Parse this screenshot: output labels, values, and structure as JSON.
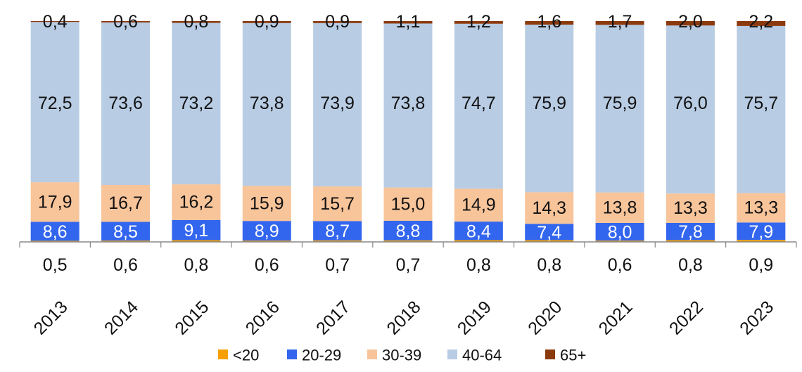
{
  "chart_data": {
    "type": "bar",
    "stacked": true,
    "normalized": true,
    "categories": [
      "2013",
      "2014",
      "2015",
      "2016",
      "2017",
      "2018",
      "2019",
      "2020",
      "2021",
      "2022",
      "2023"
    ],
    "series": [
      {
        "name": "<20",
        "color": "#f5a000",
        "values": [
          "0,5",
          "0,6",
          "0,8",
          "0,6",
          "0,7",
          "0,7",
          "0,8",
          "0,8",
          "0,6",
          "0,8",
          "0,9"
        ]
      },
      {
        "name": "20-29",
        "color": "#3366ee",
        "values": [
          "8,6",
          "8,5",
          "9,1",
          "8,9",
          "8,7",
          "8,8",
          "8,4",
          "7,4",
          "8,0",
          "7,8",
          "7,9"
        ]
      },
      {
        "name": "30-39",
        "color": "#f8c49a",
        "values": [
          "17,9",
          "16,7",
          "16,2",
          "15,9",
          "15,7",
          "15,0",
          "14,9",
          "14,3",
          "13,8",
          "13,3",
          "13,3"
        ]
      },
      {
        "name": "40-64",
        "color": "#b8cce4",
        "values": [
          "72,5",
          "73,6",
          "73,2",
          "73,8",
          "73,9",
          "73,8",
          "74,7",
          "75,9",
          "75,9",
          "76,0",
          "75,7"
        ]
      },
      {
        "name": "65+",
        "color": "#8b3a0e",
        "values": [
          "0,4",
          "0,6",
          "0,8",
          "0,9",
          "0,9",
          "1,1",
          "1,2",
          "1,6",
          "1,7",
          "2,0",
          "2,2"
        ]
      }
    ],
    "ylim": [
      0,
      100
    ],
    "grid": false,
    "legend_position": "bottom",
    "decimal_separator": ","
  }
}
